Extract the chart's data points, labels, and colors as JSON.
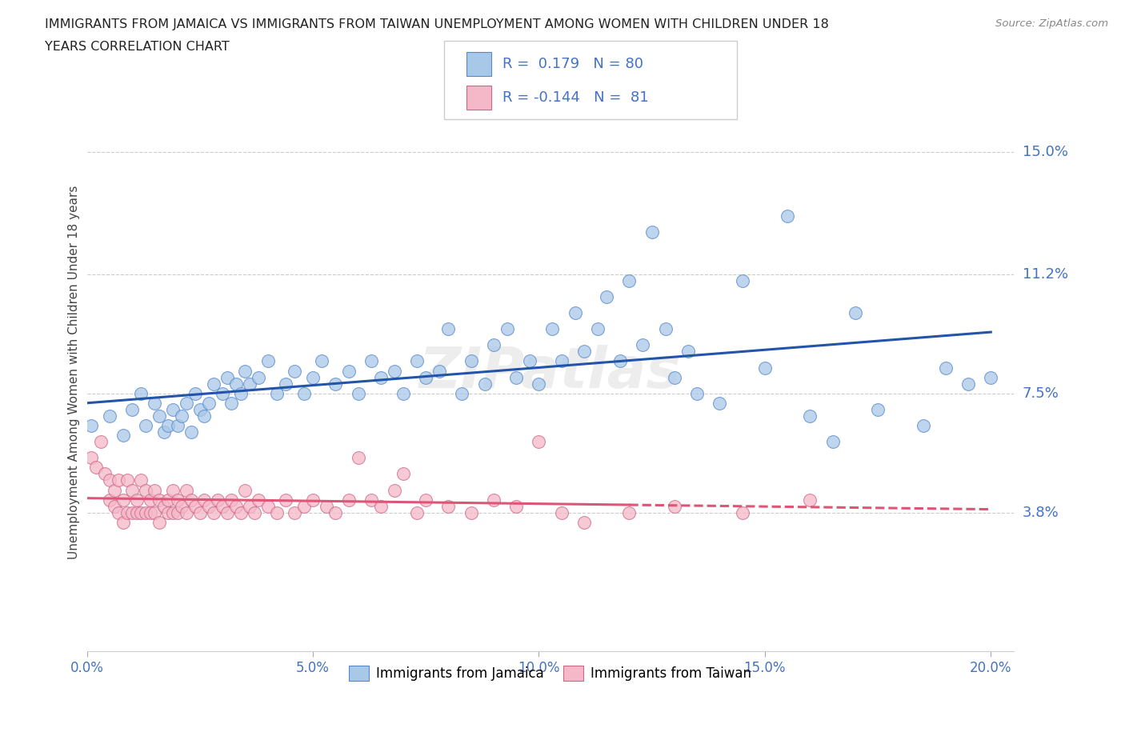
{
  "title_line1": "IMMIGRANTS FROM JAMAICA VS IMMIGRANTS FROM TAIWAN UNEMPLOYMENT AMONG WOMEN WITH CHILDREN UNDER 18",
  "title_line2": "YEARS CORRELATION CHART",
  "source": "Source: ZipAtlas.com",
  "ylabel": "Unemployment Among Women with Children Under 18 years",
  "xlim": [
    0.0,
    0.205
  ],
  "ylim": [
    -0.005,
    0.168
  ],
  "yticks": [
    0.038,
    0.075,
    0.112,
    0.15
  ],
  "ytick_labels": [
    "3.8%",
    "7.5%",
    "11.2%",
    "15.0%"
  ],
  "xticks": [
    0.0,
    0.05,
    0.1,
    0.15,
    0.2
  ],
  "xtick_labels": [
    "0.0%",
    "5.0%",
    "10.0%",
    "15.0%",
    "20.0%"
  ],
  "jamaica_color": "#a8c8e8",
  "taiwan_color": "#f5b8c8",
  "jamaica_edge_color": "#5588cc",
  "taiwan_edge_color": "#cc6688",
  "jamaica_line_color": "#2255aa",
  "taiwan_line_color": "#dd5577",
  "jamaica_R": 0.179,
  "jamaica_N": 80,
  "taiwan_R": -0.144,
  "taiwan_N": 81,
  "label_color": "#4472c4",
  "background_color": "#ffffff",
  "watermark": "ZIPatlas",
  "jamaica_x": [
    0.001,
    0.005,
    0.008,
    0.01,
    0.012,
    0.013,
    0.015,
    0.016,
    0.017,
    0.018,
    0.019,
    0.02,
    0.021,
    0.022,
    0.023,
    0.024,
    0.025,
    0.026,
    0.027,
    0.028,
    0.03,
    0.031,
    0.032,
    0.033,
    0.034,
    0.035,
    0.036,
    0.038,
    0.04,
    0.042,
    0.044,
    0.046,
    0.048,
    0.05,
    0.052,
    0.055,
    0.058,
    0.06,
    0.063,
    0.065,
    0.068,
    0.07,
    0.073,
    0.075,
    0.078,
    0.08,
    0.083,
    0.085,
    0.088,
    0.09,
    0.093,
    0.095,
    0.098,
    0.1,
    0.103,
    0.105,
    0.108,
    0.11,
    0.113,
    0.115,
    0.118,
    0.12,
    0.123,
    0.125,
    0.128,
    0.13,
    0.133,
    0.135,
    0.14,
    0.145,
    0.15,
    0.155,
    0.16,
    0.165,
    0.17,
    0.175,
    0.185,
    0.19,
    0.195,
    0.2
  ],
  "jamaica_y": [
    0.065,
    0.068,
    0.062,
    0.07,
    0.075,
    0.065,
    0.072,
    0.068,
    0.063,
    0.065,
    0.07,
    0.065,
    0.068,
    0.072,
    0.063,
    0.075,
    0.07,
    0.068,
    0.072,
    0.078,
    0.075,
    0.08,
    0.072,
    0.078,
    0.075,
    0.082,
    0.078,
    0.08,
    0.085,
    0.075,
    0.078,
    0.082,
    0.075,
    0.08,
    0.085,
    0.078,
    0.082,
    0.075,
    0.085,
    0.08,
    0.082,
    0.075,
    0.085,
    0.08,
    0.082,
    0.095,
    0.075,
    0.085,
    0.078,
    0.09,
    0.095,
    0.08,
    0.085,
    0.078,
    0.095,
    0.085,
    0.1,
    0.088,
    0.095,
    0.105,
    0.085,
    0.11,
    0.09,
    0.125,
    0.095,
    0.08,
    0.088,
    0.075,
    0.072,
    0.11,
    0.083,
    0.13,
    0.068,
    0.06,
    0.1,
    0.07,
    0.065,
    0.083,
    0.078,
    0.08
  ],
  "taiwan_x": [
    0.001,
    0.002,
    0.003,
    0.004,
    0.005,
    0.005,
    0.006,
    0.006,
    0.007,
    0.007,
    0.008,
    0.008,
    0.009,
    0.009,
    0.01,
    0.01,
    0.011,
    0.011,
    0.012,
    0.012,
    0.013,
    0.013,
    0.014,
    0.014,
    0.015,
    0.015,
    0.016,
    0.016,
    0.017,
    0.018,
    0.018,
    0.019,
    0.019,
    0.02,
    0.02,
    0.021,
    0.022,
    0.022,
    0.023,
    0.024,
    0.025,
    0.026,
    0.027,
    0.028,
    0.029,
    0.03,
    0.031,
    0.032,
    0.033,
    0.034,
    0.035,
    0.036,
    0.037,
    0.038,
    0.04,
    0.042,
    0.044,
    0.046,
    0.048,
    0.05,
    0.053,
    0.055,
    0.058,
    0.06,
    0.063,
    0.065,
    0.068,
    0.07,
    0.073,
    0.075,
    0.08,
    0.085,
    0.09,
    0.095,
    0.1,
    0.105,
    0.11,
    0.12,
    0.13,
    0.145,
    0.16
  ],
  "taiwan_y": [
    0.055,
    0.052,
    0.06,
    0.05,
    0.048,
    0.042,
    0.045,
    0.04,
    0.048,
    0.038,
    0.042,
    0.035,
    0.048,
    0.038,
    0.045,
    0.038,
    0.042,
    0.038,
    0.048,
    0.038,
    0.045,
    0.038,
    0.042,
    0.038,
    0.045,
    0.038,
    0.042,
    0.035,
    0.04,
    0.042,
    0.038,
    0.045,
    0.038,
    0.042,
    0.038,
    0.04,
    0.045,
    0.038,
    0.042,
    0.04,
    0.038,
    0.042,
    0.04,
    0.038,
    0.042,
    0.04,
    0.038,
    0.042,
    0.04,
    0.038,
    0.045,
    0.04,
    0.038,
    0.042,
    0.04,
    0.038,
    0.042,
    0.038,
    0.04,
    0.042,
    0.04,
    0.038,
    0.042,
    0.055,
    0.042,
    0.04,
    0.045,
    0.05,
    0.038,
    0.042,
    0.04,
    0.038,
    0.042,
    0.04,
    0.06,
    0.038,
    0.035,
    0.038,
    0.04,
    0.038,
    0.042
  ]
}
